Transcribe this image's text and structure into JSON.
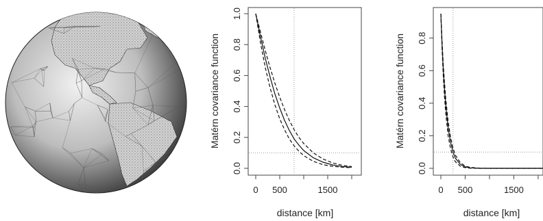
{
  "globe": {
    "description_icon": "triangulated-sphere-mesh"
  },
  "chart_data": [
    {
      "type": "line",
      "xlabel": "distance [km]",
      "ylabel": "Matérn covariance function",
      "xlim": [
        0,
        2100
      ],
      "ylim": [
        0,
        1
      ],
      "xticks": [
        0,
        500,
        1500
      ],
      "xtick_labels": [
        "0",
        "500",
        "1500"
      ],
      "yticks": [
        0,
        0.2,
        0.4,
        0.6,
        0.8,
        1.0
      ],
      "ytick_labels": [
        "0.0",
        "0.2",
        "0.4",
        "0.6",
        "0.8",
        "1.0"
      ],
      "reference_lines": {
        "vertical": 800,
        "horizontal": 0.1
      },
      "series": [
        {
          "style": "dashed",
          "x": [
            0,
            100,
            200,
            300,
            400,
            500,
            600,
            700,
            800,
            900,
            1000,
            1200,
            1400,
            1600,
            1800,
            2000
          ],
          "y": [
            1,
            0.88,
            0.76,
            0.65,
            0.55,
            0.46,
            0.38,
            0.31,
            0.25,
            0.2,
            0.16,
            0.1,
            0.06,
            0.035,
            0.02,
            0.011
          ]
        },
        {
          "style": "solid",
          "x": [
            0,
            100,
            200,
            300,
            400,
            500,
            600,
            700,
            800,
            900,
            1000,
            1200,
            1400,
            1600,
            1800,
            2000
          ],
          "y": [
            1,
            0.85,
            0.71,
            0.59,
            0.48,
            0.39,
            0.31,
            0.245,
            0.19,
            0.15,
            0.115,
            0.068,
            0.04,
            0.022,
            0.012,
            0.007
          ]
        },
        {
          "style": "dashed",
          "x": [
            0,
            100,
            200,
            300,
            400,
            500,
            600,
            700,
            800,
            900,
            1000,
            1200,
            1400,
            1600,
            1800,
            2000
          ],
          "y": [
            1,
            0.81,
            0.65,
            0.52,
            0.41,
            0.32,
            0.25,
            0.19,
            0.145,
            0.11,
            0.082,
            0.045,
            0.024,
            0.013,
            0.007,
            0.004
          ]
        }
      ]
    },
    {
      "type": "line",
      "xlabel": "distance [km]",
      "ylabel": "Matérn covariance function",
      "xlim": [
        0,
        2100
      ],
      "ylim": [
        0,
        0.95
      ],
      "xticks": [
        0,
        500,
        1500
      ],
      "xtick_labels": [
        "0",
        "500",
        "1500"
      ],
      "yticks": [
        0,
        0.2,
        0.4,
        0.6,
        0.8
      ],
      "ytick_labels": [
        "0.0",
        "0.2",
        "0.4",
        "0.6",
        "0.8"
      ],
      "reference_lines": {
        "vertical": 250,
        "horizontal": 0.1
      },
      "series": [
        {
          "style": "dashed",
          "x": [
            0,
            25,
            50,
            75,
            100,
            150,
            200,
            250,
            300,
            400,
            500,
            600,
            800,
            1000,
            1500,
            2100
          ],
          "y": [
            0.95,
            0.78,
            0.64,
            0.53,
            0.43,
            0.29,
            0.19,
            0.125,
            0.08,
            0.035,
            0.014,
            0.006,
            0.001,
            0,
            0,
            0
          ]
        },
        {
          "style": "solid",
          "x": [
            0,
            25,
            50,
            75,
            100,
            150,
            200,
            250,
            300,
            400,
            500,
            600,
            800,
            1000,
            1500,
            2100
          ],
          "y": [
            0.95,
            0.76,
            0.61,
            0.49,
            0.39,
            0.25,
            0.16,
            0.1,
            0.062,
            0.024,
            0.009,
            0.003,
            0,
            0,
            0,
            0
          ]
        },
        {
          "style": "dashed",
          "x": [
            0,
            25,
            50,
            75,
            100,
            150,
            200,
            250,
            300,
            400,
            500,
            600,
            800,
            1000,
            1500,
            2100
          ],
          "y": [
            0.95,
            0.73,
            0.57,
            0.44,
            0.34,
            0.2,
            0.12,
            0.07,
            0.04,
            0.013,
            0.004,
            0.001,
            0,
            0,
            0,
            0
          ]
        }
      ]
    }
  ]
}
